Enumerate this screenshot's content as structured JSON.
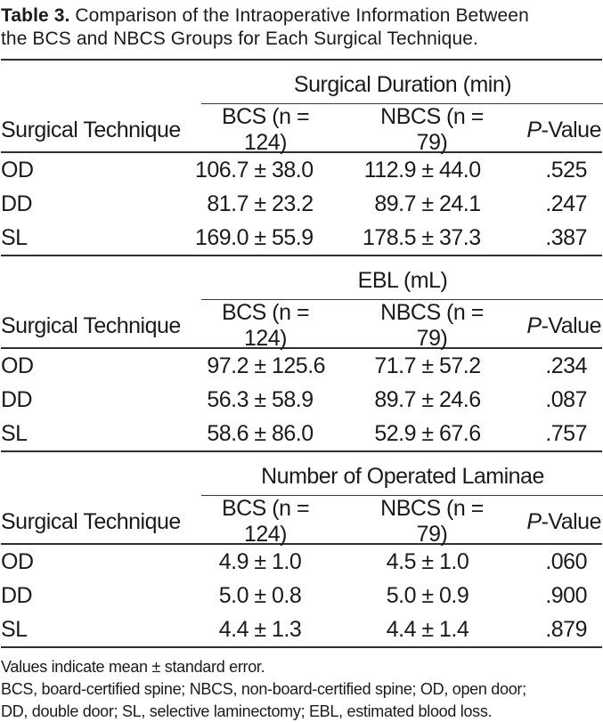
{
  "title": {
    "label": "Table 3.",
    "line1": " Comparison of the Intraoperative Information Between",
    "line2": "the BCS and NBCS Groups for Each Surgical Technique."
  },
  "columns": {
    "technique": "Surgical Technique",
    "bcs": "BCS (n = 124)",
    "nbcs": "NBCS (n = 79)",
    "pvalue": "P-Value"
  },
  "plus_minus": "±",
  "sections": [
    {
      "heading": "Surgical Duration (min)",
      "rows": [
        {
          "technique": "OD",
          "bcs_mean": "106.7",
          "bcs_sd": "38.0",
          "nbcs_mean": "112.9",
          "nbcs_sd": "44.0",
          "p": ".525"
        },
        {
          "technique": "DD",
          "bcs_mean": "81.7",
          "bcs_sd": "23.2",
          "nbcs_mean": "89.7",
          "nbcs_sd": "24.1",
          "p": ".247"
        },
        {
          "technique": "SL",
          "bcs_mean": "169.0",
          "bcs_sd": "55.9",
          "nbcs_mean": "178.5",
          "nbcs_sd": "37.3",
          "p": ".387"
        }
      ]
    },
    {
      "heading": "EBL (mL)",
      "rows": [
        {
          "technique": "OD",
          "bcs_mean": "97.2",
          "bcs_sd": "125.6",
          "nbcs_mean": "71.7",
          "nbcs_sd": "57.2",
          "p": ".234"
        },
        {
          "technique": "DD",
          "bcs_mean": "56.3",
          "bcs_sd": "58.9",
          "nbcs_mean": "89.7",
          "nbcs_sd": "24.6",
          "p": ".087"
        },
        {
          "technique": "SL",
          "bcs_mean": "58.6",
          "bcs_sd": "86.0",
          "nbcs_mean": "52.9",
          "nbcs_sd": "67.6",
          "p": ".757"
        }
      ]
    },
    {
      "heading": "Number of Operated Laminae",
      "rows": [
        {
          "technique": "OD",
          "bcs_mean": "4.9",
          "bcs_sd": "1.0",
          "nbcs_mean": "4.5",
          "nbcs_sd": "1.0",
          "p": ".060"
        },
        {
          "technique": "DD",
          "bcs_mean": "5.0",
          "bcs_sd": "0.8",
          "nbcs_mean": "5.0",
          "nbcs_sd": "0.9",
          "p": ".900"
        },
        {
          "technique": "SL",
          "bcs_mean": "4.4",
          "bcs_sd": "1.3",
          "nbcs_mean": "4.4",
          "nbcs_sd": "1.4",
          "p": ".879"
        }
      ]
    }
  ],
  "footnotes": {
    "note": "Values indicate mean ± standard error.",
    "abbrev_line1": "BCS, board-certified spine; NBCS, non-board-certified spine; OD, open door;",
    "abbrev_line2": "DD, double door; SL, selective laminectomy; EBL, estimated blood loss."
  }
}
